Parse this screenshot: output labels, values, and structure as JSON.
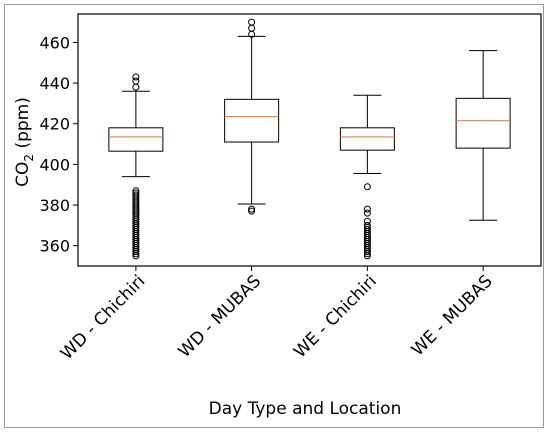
{
  "chart_data": {
    "type": "box",
    "title": "",
    "xlabel": "Day Type and Location",
    "ylabel": "CO₂ (ppm)",
    "ylabel_main": "CO",
    "ylabel_sub": "2",
    "ylabel_unit": " (ppm)",
    "ylim": [
      350,
      474
    ],
    "yticks": [
      360,
      380,
      400,
      420,
      440,
      460
    ],
    "grid": false,
    "colors": {
      "box": "#000000",
      "median": "#e8824a",
      "frame": "#000000"
    },
    "categories": [
      "WD - Chichiri",
      "WD - MUBAS",
      "WE - Chichiri",
      "WE - MUBAS"
    ],
    "boxes": [
      {
        "label": "WD - Chichiri",
        "whisker_low": 394,
        "q1": 406.5,
        "median": 413.5,
        "q3": 418,
        "whisker_high": 436,
        "outliers": [
          438,
          441,
          443,
          355,
          356,
          357,
          358,
          359,
          360,
          361,
          362,
          363,
          364,
          365,
          366,
          367,
          368,
          369,
          370,
          371,
          372,
          373,
          374,
          375,
          376,
          377,
          378,
          379,
          380,
          381,
          382,
          383,
          384,
          385,
          386,
          387
        ]
      },
      {
        "label": "WD - MUBAS",
        "whisker_low": 380.5,
        "q1": 411,
        "median": 423.5,
        "q3": 432,
        "whisker_high": 463,
        "outliers": [
          464,
          467,
          470,
          377,
          378
        ]
      },
      {
        "label": "WE - Chichiri",
        "whisker_low": 395.5,
        "q1": 407,
        "median": 413.5,
        "q3": 418,
        "whisker_high": 434,
        "outliers": [
          389,
          378,
          376,
          372,
          370,
          369,
          368,
          367,
          366,
          365,
          364,
          363,
          362,
          361,
          360,
          359,
          358,
          357,
          356,
          355
        ]
      },
      {
        "label": "WE - MUBAS",
        "whisker_low": 372.5,
        "q1": 408,
        "median": 421.5,
        "q3": 432.5,
        "whisker_high": 456,
        "outliers": []
      }
    ]
  }
}
